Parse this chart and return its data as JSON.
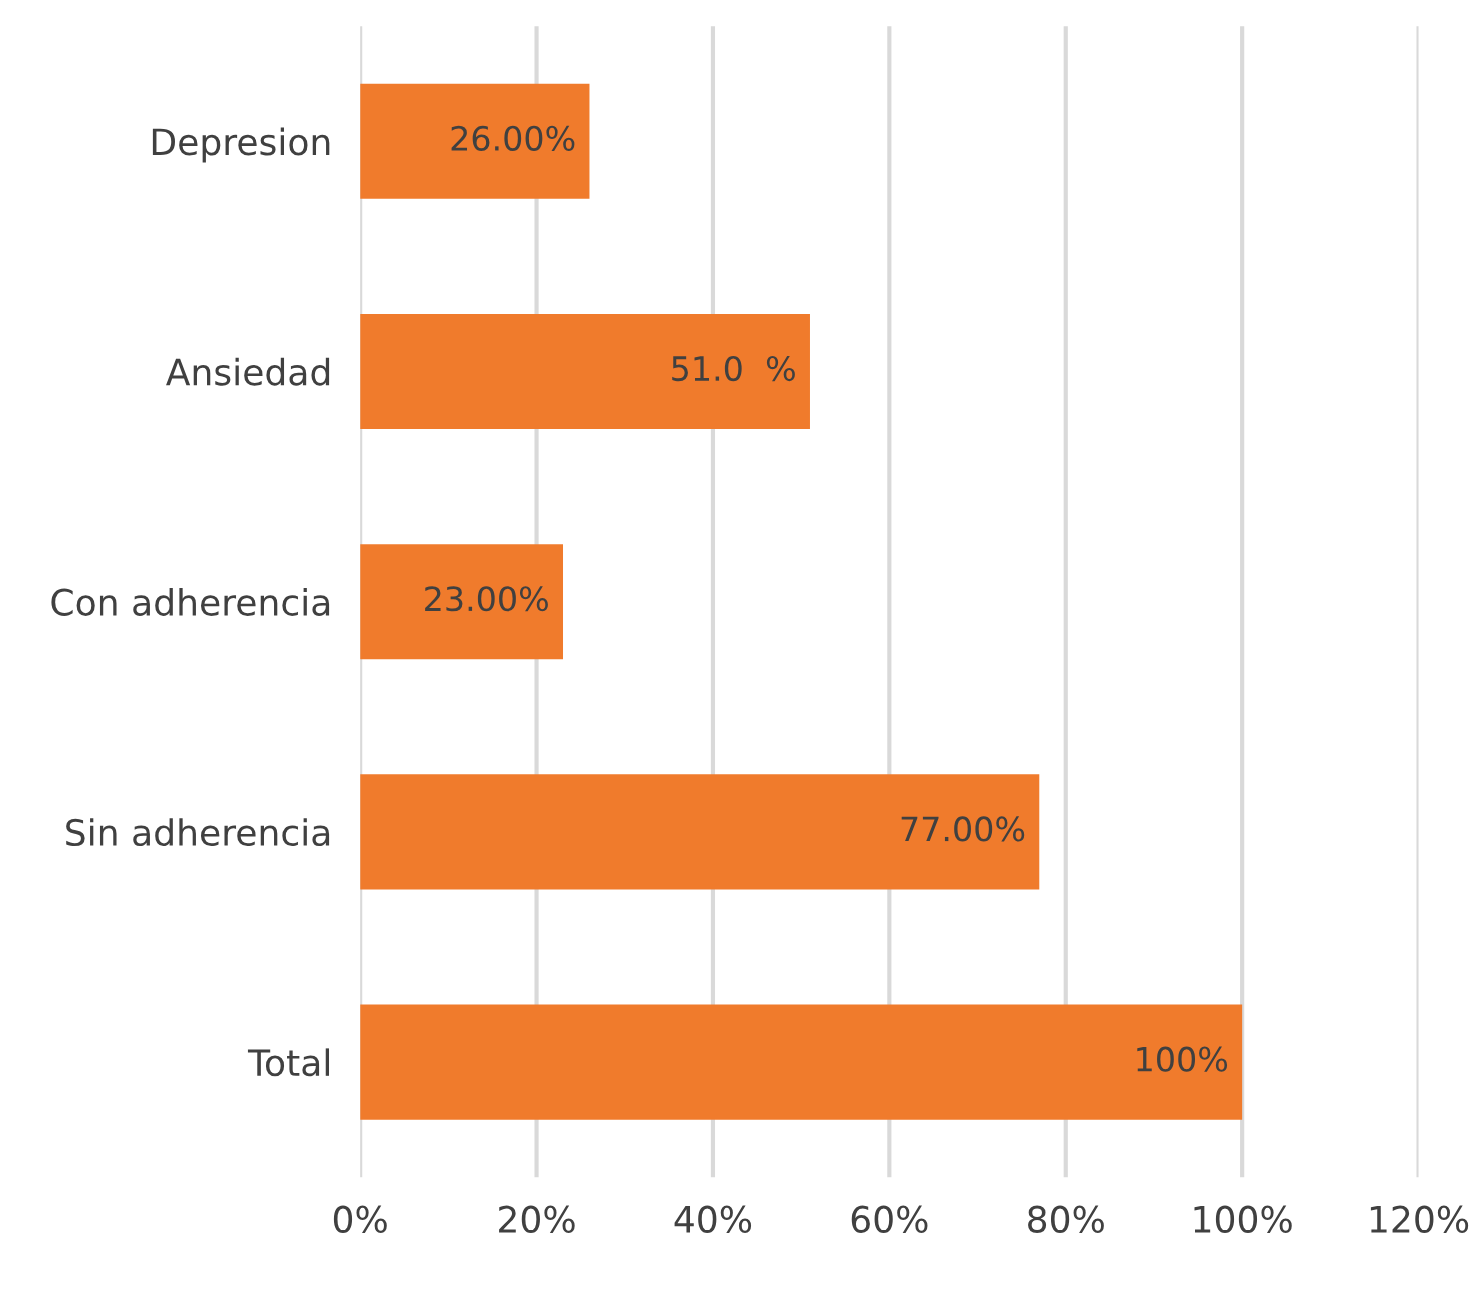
{
  "chart_data": {
    "type": "bar",
    "orientation": "horizontal",
    "categories": [
      "Depresion",
      "Ansiedad",
      "Con adherencia",
      "Sin adherencia",
      "Total"
    ],
    "values": [
      26,
      51,
      23,
      77,
      100
    ],
    "value_labels": [
      "26.00%",
      "51.0  %",
      "23.00%",
      "77.00%",
      "100%"
    ],
    "color": "#f07b2c",
    "xlim": [
      0,
      120
    ],
    "xticks": [
      {
        "value": 0,
        "label": "0%"
      },
      {
        "value": 20,
        "label": "20%"
      },
      {
        "value": 40,
        "label": "40%"
      },
      {
        "value": 60,
        "label": "60%"
      },
      {
        "value": 80,
        "label": "80%"
      },
      {
        "value": 100,
        "label": "100%"
      },
      {
        "value": 120,
        "label": "120%"
      }
    ],
    "grid": "x",
    "legend": false
  }
}
